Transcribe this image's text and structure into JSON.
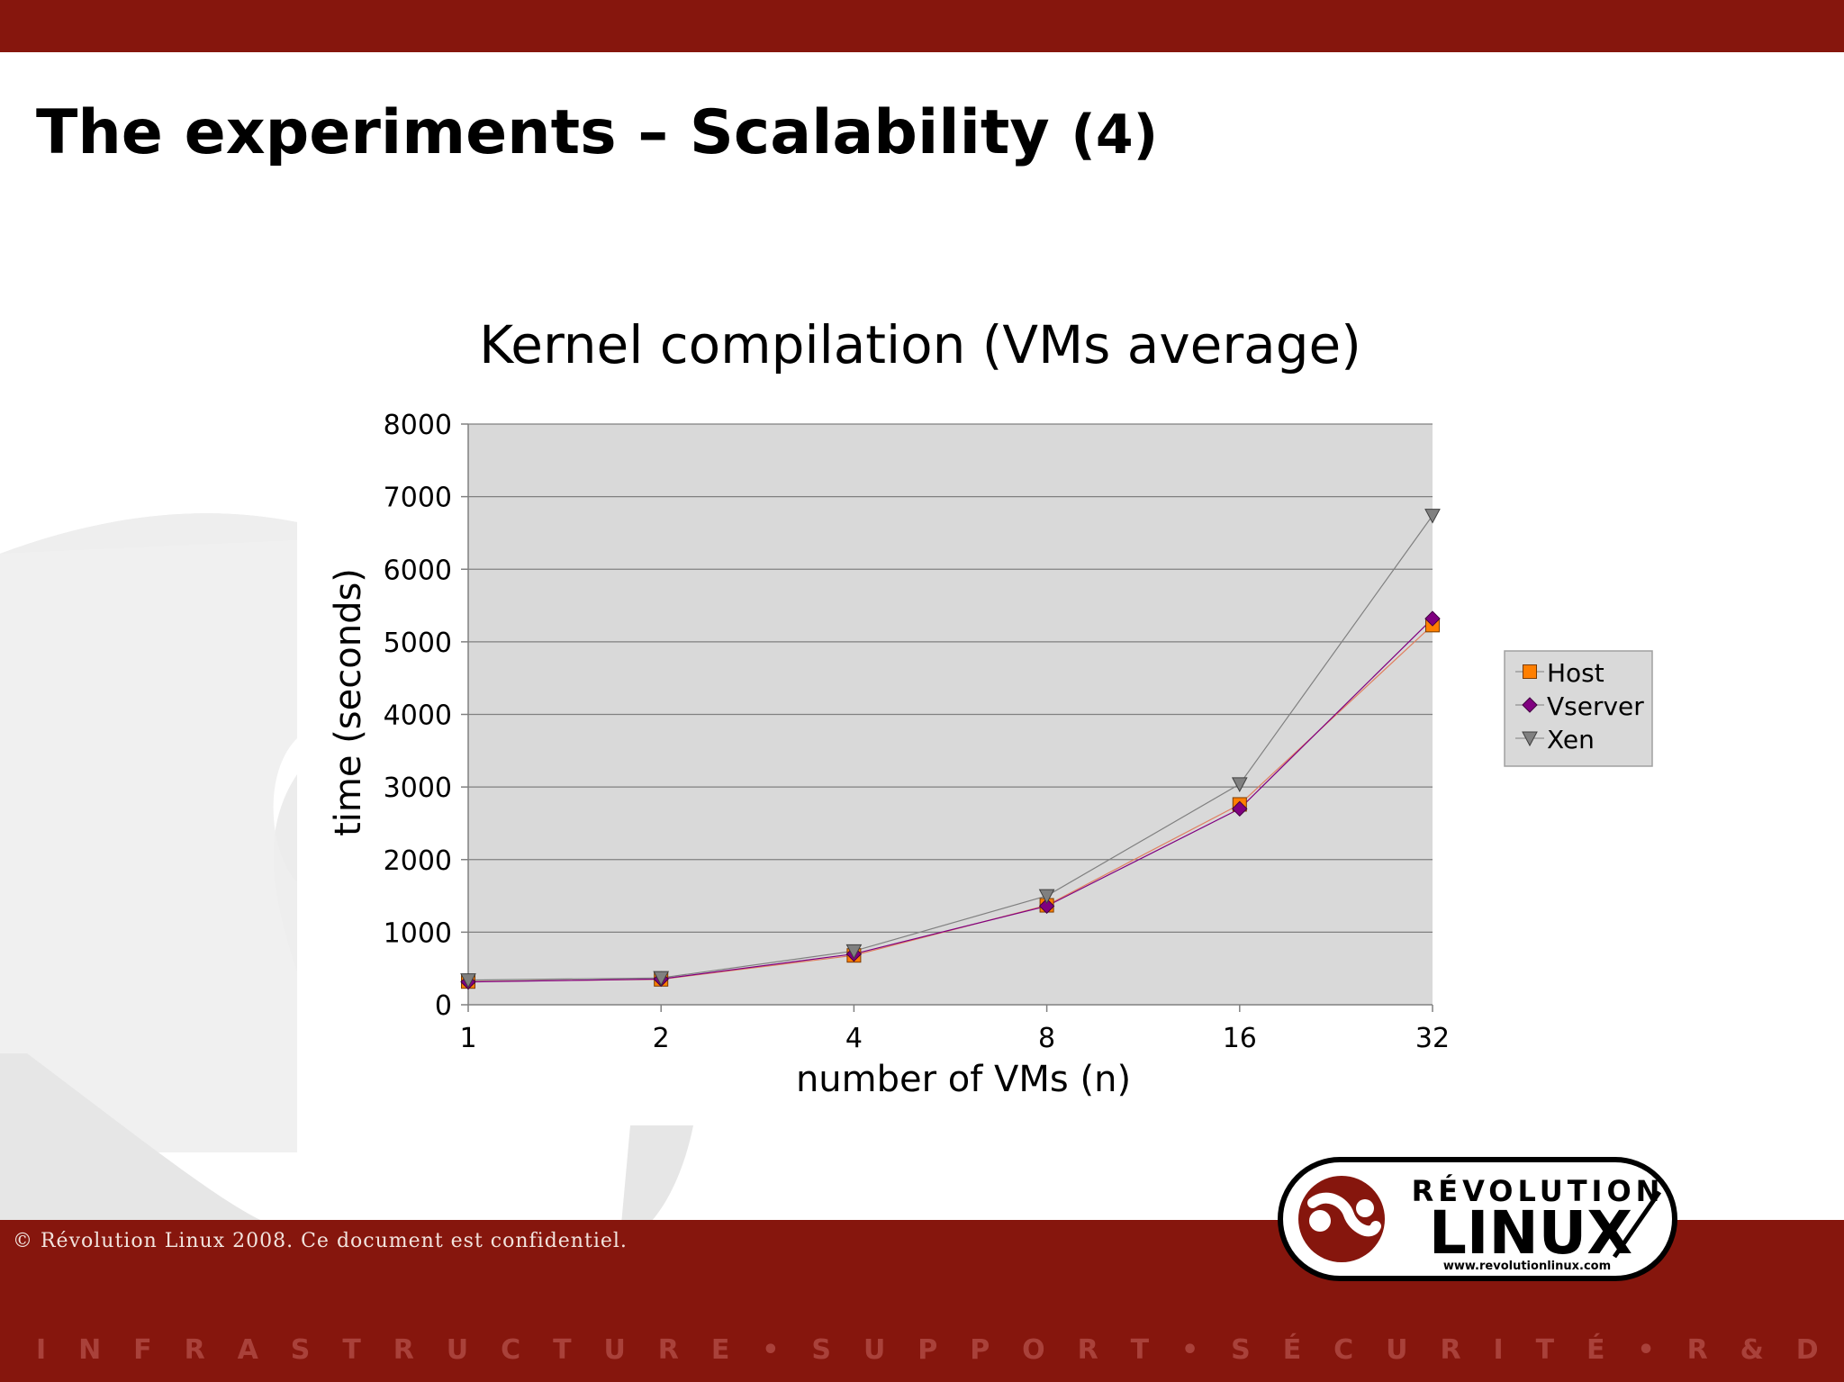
{
  "slide": {
    "title_main": "The experiments – Scalability",
    "title_num": "(4)",
    "copyright": "© Révolution Linux 2008. Ce document est confidentiel.",
    "tagline": [
      "I",
      "N",
      "F",
      "R",
      "A",
      "S",
      "T",
      "R",
      "U",
      "C",
      "T",
      "U",
      "R",
      "E",
      "•",
      "S",
      "U",
      "P",
      "P",
      "O",
      "R",
      "T",
      "•",
      "S",
      "É",
      "C",
      "U",
      "R",
      "I",
      "T",
      "É",
      "•",
      "R",
      "&",
      "D"
    ],
    "logo": {
      "word_top": "RÉVOLUTION",
      "word_main": "LINUX",
      "url": "www.revolutionlinux.com"
    }
  },
  "colors": {
    "brand_red": "#86160d",
    "plot_bg": "#d9d9d9",
    "host": "#ff7f00",
    "vserver": "#800080",
    "xen": "#808080"
  },
  "chart_data": {
    "type": "line",
    "title": "Kernel compilation (VMs average)",
    "xlabel": "number of VMs (n)",
    "ylabel": "time (seconds)",
    "categories": [
      "1",
      "2",
      "4",
      "8",
      "16",
      "32"
    ],
    "ylim": [
      0,
      8000
    ],
    "yticks": [
      "0",
      "1000",
      "2000",
      "3000",
      "4000",
      "5000",
      "6000",
      "7000",
      "8000"
    ],
    "grid": true,
    "legend_position": "right",
    "series": [
      {
        "name": "Host",
        "marker": "square",
        "values": [
          320,
          350,
          680,
          1370,
          2760,
          5230
        ]
      },
      {
        "name": "Vserver",
        "marker": "diamond",
        "values": [
          315,
          355,
          700,
          1360,
          2700,
          5320
        ]
      },
      {
        "name": "Xen",
        "marker": "triangle-down",
        "values": [
          340,
          370,
          740,
          1500,
          3040,
          6740
        ]
      }
    ]
  }
}
